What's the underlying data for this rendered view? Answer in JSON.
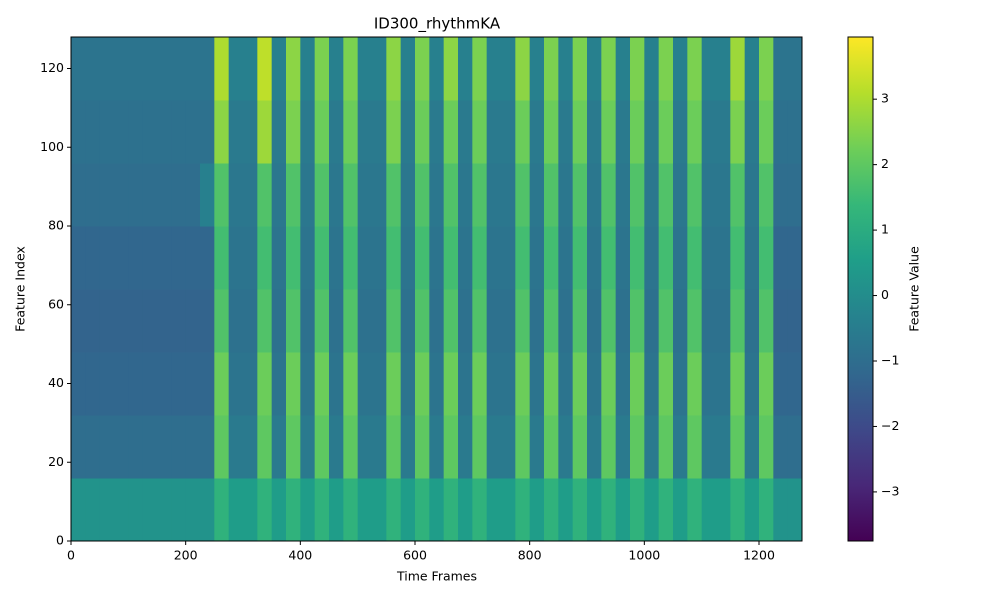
{
  "chart_data": {
    "type": "heatmap",
    "title": "ID300_rhythmKA",
    "x_label": "Time Frames",
    "y_label": "Feature Index",
    "colorbar_label": "Feature Value",
    "colormap": "viridis",
    "xlim": [
      0,
      1275
    ],
    "ylim": [
      0,
      128
    ],
    "zlim": [
      -3.75,
      3.95
    ],
    "xticks": [
      0,
      200,
      400,
      600,
      800,
      1000,
      1200
    ],
    "yticks": [
      0,
      20,
      40,
      60,
      80,
      100,
      120
    ],
    "zticks": [
      {
        "value": -3,
        "label": "−3"
      },
      {
        "value": -2,
        "label": "−2"
      },
      {
        "value": -1,
        "label": "−1"
      },
      0,
      1,
      2,
      3
    ],
    "z": [
      [
        0.2,
        0.2,
        0.2,
        0.2,
        0.2,
        0.2,
        0.2,
        0.2,
        0.2,
        0.2,
        1.2,
        0.5,
        0.5,
        1.2,
        0.5,
        1.2,
        0.5,
        1.2,
        0.5,
        1.2,
        0.5,
        0.5,
        1.2,
        0.5,
        1.2,
        0.5,
        1.2,
        0.5,
        1.2,
        0.5,
        0.5,
        1.2,
        0.5,
        1.2,
        0.5,
        1.2,
        0.5,
        1.2,
        0.5,
        1.2,
        0.5,
        1.2,
        0.5,
        1.2,
        0.5,
        0.5,
        1.2,
        0.5,
        1.2,
        0.2,
        0.2
      ],
      [
        -1.0,
        -1.0,
        -1.0,
        -1.0,
        -1.0,
        -1.0,
        -1.0,
        -1.0,
        -1.0,
        -1.0,
        2.0,
        -0.6,
        -0.6,
        2.0,
        -0.6,
        2.0,
        -0.6,
        2.0,
        -0.6,
        2.0,
        -0.6,
        -0.6,
        2.0,
        -0.6,
        2.0,
        -0.6,
        2.0,
        -0.6,
        2.0,
        -0.6,
        -0.6,
        2.0,
        -0.6,
        2.0,
        -0.6,
        2.0,
        -0.6,
        2.0,
        -0.6,
        2.0,
        -0.6,
        2.0,
        -0.6,
        2.0,
        -0.6,
        -0.6,
        2.0,
        -0.6,
        2.0,
        -1.0,
        -1.0
      ],
      [
        -1.2,
        -1.2,
        -1.2,
        -1.2,
        -1.2,
        -1.2,
        -1.2,
        -1.2,
        -1.2,
        -1.2,
        2.2,
        -0.8,
        -0.8,
        2.2,
        -0.8,
        2.2,
        -0.8,
        2.2,
        -0.8,
        2.2,
        -0.8,
        -0.8,
        2.2,
        -0.8,
        2.2,
        -0.8,
        2.2,
        -0.8,
        2.2,
        -0.8,
        -0.8,
        2.2,
        -0.8,
        2.2,
        -0.8,
        2.2,
        -0.8,
        2.2,
        -0.8,
        2.2,
        -0.8,
        2.2,
        -0.8,
        2.2,
        -0.8,
        -0.8,
        2.2,
        -0.8,
        2.2,
        -1.2,
        -1.2
      ],
      [
        -1.3,
        -1.3,
        -1.3,
        -1.3,
        -1.3,
        -1.3,
        -1.3,
        -1.3,
        -1.3,
        -1.3,
        1.8,
        -0.9,
        -0.9,
        1.8,
        -0.9,
        1.8,
        -0.9,
        1.8,
        -0.9,
        1.8,
        -0.9,
        -0.9,
        1.8,
        -0.9,
        1.8,
        -0.9,
        1.8,
        -0.9,
        1.8,
        -0.9,
        -0.9,
        1.8,
        -0.9,
        1.8,
        -0.9,
        1.8,
        -0.9,
        1.8,
        -0.9,
        1.8,
        -0.9,
        1.8,
        -0.9,
        1.8,
        -0.9,
        -0.9,
        1.8,
        -0.9,
        1.8,
        -1.3,
        -1.3
      ],
      [
        -1.2,
        -1.2,
        -1.2,
        -1.2,
        -1.2,
        -1.2,
        -1.2,
        -1.2,
        -1.2,
        -1.2,
        1.6,
        -0.8,
        -0.8,
        1.6,
        -0.8,
        1.6,
        -0.8,
        1.6,
        -0.8,
        1.6,
        -0.8,
        -0.8,
        1.6,
        -0.8,
        1.6,
        -0.8,
        1.6,
        -0.8,
        1.6,
        -0.8,
        -0.8,
        1.6,
        -0.8,
        1.6,
        -0.8,
        1.6,
        -0.8,
        1.6,
        -0.8,
        1.6,
        -0.8,
        1.6,
        -0.8,
        1.6,
        -0.8,
        -0.8,
        1.6,
        -0.8,
        1.6,
        -1.2,
        -1.2
      ],
      [
        -1.0,
        -1.0,
        -1.0,
        -1.0,
        -1.0,
        -1.0,
        -1.0,
        -1.0,
        -1.0,
        -0.4,
        1.8,
        -0.7,
        -0.7,
        1.8,
        -0.7,
        1.8,
        -0.7,
        1.8,
        -0.7,
        1.8,
        -0.7,
        -0.7,
        1.8,
        -0.7,
        1.8,
        -0.7,
        1.8,
        -0.7,
        1.8,
        -0.7,
        -0.7,
        1.8,
        -0.7,
        1.8,
        -0.7,
        1.8,
        -0.7,
        1.8,
        -0.7,
        1.8,
        -0.7,
        1.8,
        -0.7,
        1.8,
        -0.7,
        -0.7,
        1.8,
        -0.7,
        1.8,
        -1.0,
        -1.0
      ],
      [
        -0.9,
        -0.9,
        -0.9,
        -0.9,
        -0.9,
        -0.9,
        -0.9,
        -0.9,
        -0.9,
        -0.9,
        2.6,
        -0.6,
        -0.6,
        2.8,
        -0.6,
        2.4,
        -0.6,
        2.2,
        -0.6,
        2.2,
        -0.6,
        -0.6,
        2.4,
        -0.6,
        2.2,
        -0.6,
        2.2,
        -0.6,
        2.2,
        -0.6,
        -0.6,
        2.2,
        -0.6,
        2.2,
        -0.6,
        2.2,
        -0.6,
        2.2,
        -0.6,
        2.2,
        -0.6,
        2.2,
        -0.6,
        2.2,
        -0.6,
        -0.6,
        2.4,
        -0.6,
        2.2,
        -0.9,
        -0.9
      ],
      [
        -0.8,
        -0.8,
        -0.8,
        -0.8,
        -0.8,
        -0.8,
        -0.8,
        -0.8,
        -0.8,
        -0.8,
        3.0,
        -0.4,
        -0.4,
        3.2,
        -0.4,
        2.6,
        -0.4,
        2.4,
        -0.4,
        2.4,
        -0.4,
        -0.4,
        2.6,
        -0.4,
        2.4,
        -0.4,
        2.6,
        -0.4,
        2.4,
        -0.4,
        -0.4,
        2.6,
        -0.4,
        2.4,
        -0.4,
        2.4,
        -0.4,
        2.4,
        -0.4,
        2.4,
        -0.4,
        2.4,
        -0.4,
        2.4,
        -0.4,
        -0.4,
        2.8,
        -0.4,
        2.4,
        -0.8,
        -0.8
      ]
    ]
  }
}
